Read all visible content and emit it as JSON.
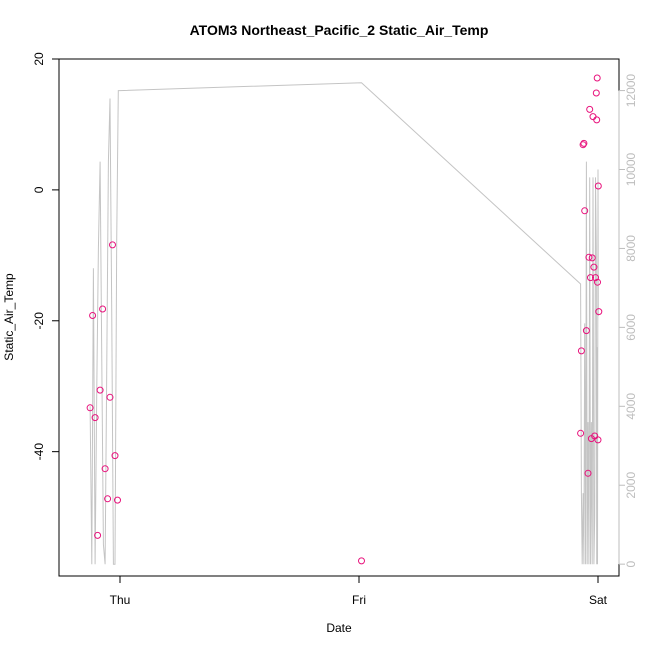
{
  "chart_data": {
    "type": "scatter",
    "title": "ATOM3 Northeast_Pacific_2 Static_Air_Temp",
    "xlabel": "Date",
    "ylabel": "Static_Air_Temp",
    "x_ticks": [
      "Thu",
      "Fri",
      "Sat"
    ],
    "y_ticks": [
      -40,
      -20,
      0,
      20
    ],
    "right_ticks": [
      0,
      2000,
      4000,
      6000,
      8000,
      10000,
      12000
    ],
    "ylim": [
      -59,
      20
    ],
    "right_ylim": [
      -300,
      12800
    ],
    "grid": false,
    "legend": "none",
    "colors": {
      "points": "#e8127c",
      "line": "#c4c4c4",
      "right_axis": "#bdbdbd",
      "axis": "#000000"
    },
    "series": [
      {
        "type": "points",
        "x": [
          "Wed 21:00",
          "Wed 21:15",
          "Wed 21:30",
          "Wed 21:45",
          "Wed 22:00",
          "Wed 22:15",
          "Wed 22:30",
          "Wed 22:45",
          "Wed 23:00",
          "Wed 23:15",
          "Wed 23:30",
          "Wed 23:45",
          "Fri 00:15",
          "Fri 22:15",
          "Fri 22:20",
          "Fri 22:30",
          "Fri 22:35",
          "Fri 22:40",
          "Fri 22:50",
          "Fri 23:00",
          "Fri 23:05",
          "Fri 23:10",
          "Fri 23:15",
          "Fri 23:20",
          "Fri 23:25",
          "Fri 23:30",
          "Fri 23:35",
          "Fri 23:40",
          "Fri 23:45",
          "Fri 23:50",
          "Fri 23:52",
          "Fri 23:55",
          "Fri 23:57",
          "Sat 00:00",
          "Sat 00:02",
          "Sat 00:05"
        ],
        "y": [
          -33.3,
          -19.2,
          -34.8,
          -52.8,
          -30.6,
          -18.2,
          -42.6,
          -47.2,
          -31.7,
          -8.4,
          -40.6,
          -47.4,
          -56.7,
          -37.2,
          -24.6,
          6.9,
          7.1,
          -3.2,
          -21.5,
          -43.3,
          -10.3,
          12.3,
          -13.4,
          -38.0,
          -10.4,
          11.2,
          -11.8,
          -37.6,
          -13.4,
          14.8,
          10.7,
          17.1,
          -14.1,
          -38.2,
          0.6,
          -18.6
        ]
      },
      {
        "type": "line",
        "axis": "right",
        "x": [
          "Wed 21:00",
          "Wed 21:10",
          "Wed 21:20",
          "Wed 21:30",
          "Wed 21:40",
          "Wed 21:50",
          "Wed 22:00",
          "Wed 22:10",
          "Wed 22:20",
          "Wed 22:30",
          "Wed 22:40",
          "Wed 22:50",
          "Wed 23:00",
          "Wed 23:10",
          "Wed 23:20",
          "Wed 23:30",
          "Wed 23:40",
          "Wed 23:50",
          "Thu 00:00",
          "Fri 00:15",
          "Fri 22:15",
          "Fri 22:20",
          "Fri 22:25",
          "Fri 22:30",
          "Fri 22:35",
          "Fri 22:40",
          "Fri 22:45",
          "Fri 22:50",
          "Fri 22:55",
          "Fri 23:00",
          "Fri 23:05",
          "Fri 23:10",
          "Fri 23:15",
          "Fri 23:20",
          "Fri 23:25",
          "Fri 23:30",
          "Fri 23:35",
          "Fri 23:40",
          "Fri 23:45",
          "Fri 23:50",
          "Fri 23:52",
          "Fri 23:55",
          "Fri 23:57",
          "Sat 00:00",
          "Sat 00:02",
          "Sat 00:05"
        ],
        "y": [
          4000,
          0,
          7500,
          0,
          4500,
          8000,
          10200,
          5400,
          500,
          0,
          4800,
          10200,
          11800,
          6500,
          0,
          0,
          8200,
          12000,
          12000,
          12200,
          7100,
          1800,
          0,
          1800,
          0,
          6100,
          0,
          10200,
          0,
          3600,
          0,
          9800,
          0,
          3600,
          0,
          9800,
          0,
          1200,
          9800,
          8000,
          0,
          5500,
          0,
          10000,
          6300,
          6300
        ]
      }
    ]
  }
}
